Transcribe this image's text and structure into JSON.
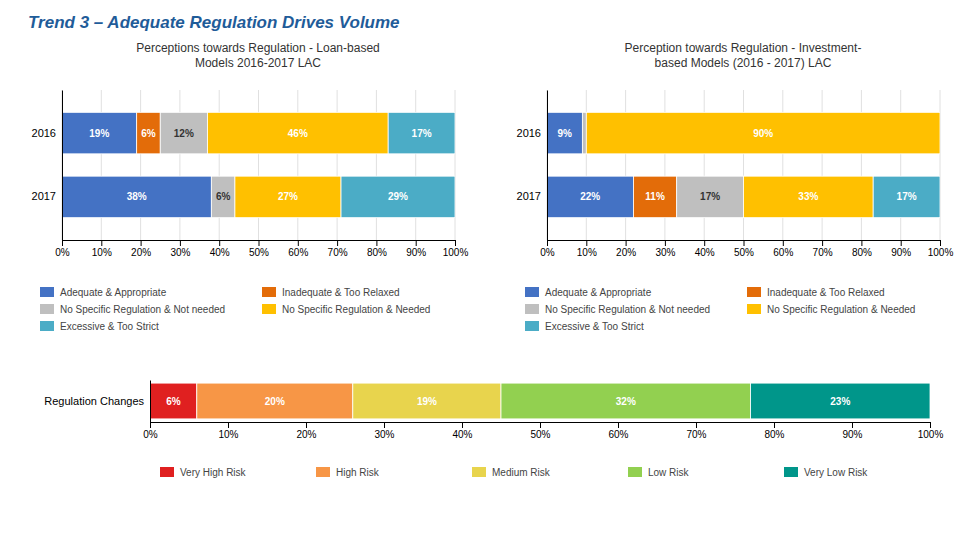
{
  "title": "Trend 3 – Adequate Regulation Drives Volume",
  "chart_data": [
    {
      "type": "bar",
      "orientation": "horizontal",
      "stacked": true,
      "grid": true,
      "data_labels": true,
      "title": "Perceptions towards Regulation - Loan-based\nModels 2016-2017 LAC",
      "categories": [
        "2016",
        "2017"
      ],
      "series": [
        {
          "name": "Adequate & Appropriate",
          "color": "#4472C4",
          "values": [
            19,
            38
          ],
          "value_labels": [
            "19%",
            "38%"
          ]
        },
        {
          "name": "Inadequate & Too Relaxed",
          "color": "#E36C09",
          "values": [
            6,
            0
          ],
          "value_labels": [
            "6%",
            null
          ]
        },
        {
          "name": "No Specific Regulation & Not needed",
          "color": "#BFBFBF",
          "values": [
            12,
            6
          ],
          "value_labels": [
            "12%",
            "6%"
          ]
        },
        {
          "name": "No Specific Regulation & Needed",
          "color": "#FFC000",
          "values": [
            46,
            27
          ],
          "value_labels": [
            "46%",
            "27%"
          ]
        },
        {
          "name": "Excessive & Too Strict",
          "color": "#4BACC6",
          "values": [
            17,
            29
          ],
          "value_labels": [
            "17%",
            "29%"
          ]
        }
      ],
      "xlim": [
        0,
        100
      ],
      "xticks": [
        {
          "value": 0,
          "label": "0%"
        },
        {
          "value": 10,
          "label": "10%"
        },
        {
          "value": 20,
          "label": "20%"
        },
        {
          "value": 30,
          "label": "30%"
        },
        {
          "value": 40,
          "label": "40%"
        },
        {
          "value": 50,
          "label": "50%"
        },
        {
          "value": 60,
          "label": "60%"
        },
        {
          "value": 70,
          "label": "70%"
        },
        {
          "value": 80,
          "label": "80%"
        },
        {
          "value": 90,
          "label": "90%"
        },
        {
          "value": 100,
          "label": "100%"
        }
      ]
    },
    {
      "type": "bar",
      "orientation": "horizontal",
      "stacked": true,
      "grid": true,
      "data_labels": true,
      "title": "Perception towards Regulation - Investment-\nbased Models (2016 - 2017) LAC",
      "categories": [
        "2016",
        "2017"
      ],
      "series": [
        {
          "name": "Adequate & Appropriate",
          "color": "#4472C4",
          "values": [
            9,
            22
          ],
          "value_labels": [
            "9%",
            "22%"
          ]
        },
        {
          "name": "Inadequate & Too Relaxed",
          "color": "#E36C09",
          "values": [
            0,
            11
          ],
          "value_labels": [
            null,
            "11%"
          ]
        },
        {
          "name": "No Specific Regulation & Not needed",
          "color": "#BFBFBF",
          "values": [
            1,
            17
          ],
          "value_labels": [
            null,
            "17%"
          ]
        },
        {
          "name": "No Specific Regulation & Needed",
          "color": "#FFC000",
          "values": [
            90,
            33
          ],
          "value_labels": [
            "90%",
            "33%"
          ]
        },
        {
          "name": "Excessive & Too Strict",
          "color": "#4BACC6",
          "values": [
            0,
            17
          ],
          "value_labels": [
            null,
            "17%"
          ]
        }
      ],
      "xlim": [
        0,
        100
      ],
      "xticks": [
        {
          "value": 0,
          "label": "0%"
        },
        {
          "value": 10,
          "label": "10%"
        },
        {
          "value": 20,
          "label": "20%"
        },
        {
          "value": 30,
          "label": "30%"
        },
        {
          "value": 40,
          "label": "40%"
        },
        {
          "value": 50,
          "label": "50%"
        },
        {
          "value": 60,
          "label": "60%"
        },
        {
          "value": 70,
          "label": "70%"
        },
        {
          "value": 80,
          "label": "80%"
        },
        {
          "value": 90,
          "label": "90%"
        },
        {
          "value": 100,
          "label": "100%"
        }
      ]
    },
    {
      "type": "bar",
      "orientation": "horizontal",
      "stacked": true,
      "grid": false,
      "data_labels": true,
      "categories": [
        "Regulation Changes"
      ],
      "series": [
        {
          "name": "Very High Risk",
          "color": "#E02020",
          "values": [
            6
          ],
          "value_labels": [
            "6%"
          ]
        },
        {
          "name": "High Risk",
          "color": "#F79646",
          "values": [
            20
          ],
          "value_labels": [
            "20%"
          ]
        },
        {
          "name": "Medium Risk",
          "color": "#E8D44D",
          "values": [
            19
          ],
          "value_labels": [
            "19%"
          ]
        },
        {
          "name": "Low Risk",
          "color": "#92D050",
          "values": [
            32
          ],
          "value_labels": [
            "32%"
          ]
        },
        {
          "name": "Very Low Risk",
          "color": "#00968A",
          "values": [
            23
          ],
          "value_labels": [
            "23%"
          ]
        }
      ],
      "xlim": [
        0,
        100
      ],
      "xticks": [
        {
          "value": 0,
          "label": "0%"
        },
        {
          "value": 10,
          "label": "10%"
        },
        {
          "value": 20,
          "label": "20%"
        },
        {
          "value": 30,
          "label": "30%"
        },
        {
          "value": 40,
          "label": "40%"
        },
        {
          "value": 50,
          "label": "50%"
        },
        {
          "value": 60,
          "label": "60%"
        },
        {
          "value": 70,
          "label": "70%"
        },
        {
          "value": 80,
          "label": "80%"
        },
        {
          "value": 90,
          "label": "90%"
        },
        {
          "value": 100,
          "label": "100%"
        }
      ]
    }
  ]
}
